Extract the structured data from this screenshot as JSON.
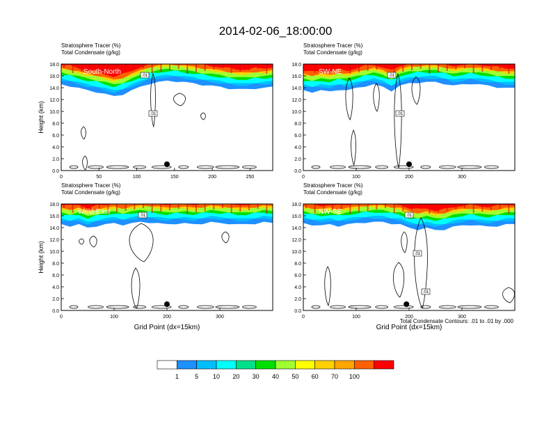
{
  "title": "2014-02-06_18:00:00",
  "colors": {
    "levels": [
      "#ffffff",
      "#1e90ff",
      "#00bfff",
      "#00ffff",
      "#00e08a",
      "#00e000",
      "#a0ff30",
      "#ffff00",
      "#ffd000",
      "#ffa500",
      "#ff6000",
      "#ff0000"
    ],
    "contour": "#000000"
  },
  "chart_data": [
    {
      "type": "heatmap",
      "label_top": "Stratosphere Tracer   (%)",
      "label_bottom": "Total Condensate   (g/kg)",
      "panel_label": "South-North",
      "ylabel": "Height (km)",
      "xlabel": "",
      "xlim": [
        0,
        280
      ],
      "ylim": [
        0,
        18
      ],
      "xticks": [
        "0",
        "50",
        "100",
        "150",
        "200",
        "250"
      ],
      "yticks": [
        "0.0",
        "2.0",
        "4.0",
        "6.0",
        "8.0",
        "10.0",
        "12.0",
        "14.0",
        "16.0",
        "18.0"
      ],
      "contour_labels": [
        ".01",
        ".01"
      ],
      "marker_x": 140,
      "tracer_base_km": [
        14.6,
        14.4,
        14.0,
        13.6,
        13.4,
        13.0,
        12.6,
        13.0,
        13.6,
        14.2,
        14.8,
        15.0,
        15.2,
        15.2,
        15.0,
        14.8,
        14.6,
        14.4,
        14.2,
        14.0,
        13.8,
        13.8,
        14.0,
        14.0,
        14.2
      ]
    },
    {
      "type": "heatmap",
      "label_top": "Stratosphere Tracer   (%)",
      "label_bottom": "Total Condensate   (g/kg)",
      "panel_label": "SW-NE",
      "ylabel": "",
      "xlabel": "",
      "xlim": [
        0,
        400
      ],
      "ylim": [
        0,
        18
      ],
      "xticks": [
        "0",
        "100",
        "200",
        "300"
      ],
      "yticks": [
        "0.0",
        "2.0",
        "4.0",
        "6.0",
        "8.0",
        "10.0",
        "12.0",
        "14.0",
        "16.0",
        "18.0"
      ],
      "contour_labels": [
        ".01",
        ".01"
      ],
      "marker_x": 200,
      "tracer_base_km": [
        13.6,
        13.4,
        13.6,
        13.4,
        13.8,
        13.6,
        14.0,
        14.4,
        14.6,
        14.2,
        13.6,
        14.4,
        14.8,
        15.0,
        15.0,
        15.0,
        14.8,
        14.4,
        14.6,
        14.8,
        14.6,
        14.4,
        14.2,
        14.0,
        14.0
      ]
    },
    {
      "type": "heatmap",
      "label_top": "Stratosphere Tracer   (%)",
      "label_bottom": "Total Condensate   (g/kg)",
      "panel_label": "West-East",
      "ylabel": "Height (km)",
      "xlabel": "Grid Point (dx=15km)",
      "xlim": [
        0,
        400
      ],
      "ylim": [
        0,
        18
      ],
      "xticks": [
        "0",
        "100",
        "200",
        "300"
      ],
      "yticks": [
        "0.0",
        "2.0",
        "4.0",
        "6.0",
        "8.0",
        "10.0",
        "12.0",
        "14.0",
        "16.0",
        "18.0"
      ],
      "contour_labels": [
        ".01"
      ],
      "marker_x": 200,
      "tracer_base_km": [
        14.6,
        14.4,
        14.6,
        14.0,
        14.4,
        14.6,
        14.8,
        14.6,
        14.8,
        15.0,
        15.0,
        14.8,
        14.6,
        14.8,
        14.8,
        14.6,
        14.8,
        15.0,
        14.8,
        14.8,
        14.6,
        14.6,
        14.8,
        15.0,
        14.8
      ]
    },
    {
      "type": "heatmap",
      "label_top": "Stratosphere Tracer   (%)",
      "label_bottom": "Total Condensate   (g/kg)",
      "panel_label": "NW-SE",
      "ylabel": "",
      "xlabel": "Grid Point (dx=15km)",
      "xlim": [
        0,
        400
      ],
      "ylim": [
        0,
        18
      ],
      "xticks": [
        "0",
        "100",
        "200",
        "300"
      ],
      "yticks": [
        "0.0",
        "2.0",
        "4.0",
        "6.0",
        "8.0",
        "10.0",
        "12.0",
        "14.0",
        "16.0",
        "18.0"
      ],
      "contour_labels": [
        ".01",
        ".01",
        ".01"
      ],
      "marker_x": 195,
      "tracer_base_km": [
        14.8,
        14.6,
        14.4,
        14.6,
        14.4,
        14.6,
        14.8,
        15.0,
        15.0,
        15.0,
        14.8,
        14.6,
        14.0,
        13.8,
        14.0,
        13.6,
        13.8,
        14.2,
        14.4,
        14.6,
        14.4,
        14.2,
        14.4,
        14.6,
        14.6
      ]
    }
  ],
  "contour_note": "Total Condensate Contours: .01 to .01 by .000",
  "colorbar": {
    "labels": [
      "1",
      "5",
      "10",
      "20",
      "30",
      "40",
      "50",
      "60",
      "70",
      "100"
    ]
  }
}
